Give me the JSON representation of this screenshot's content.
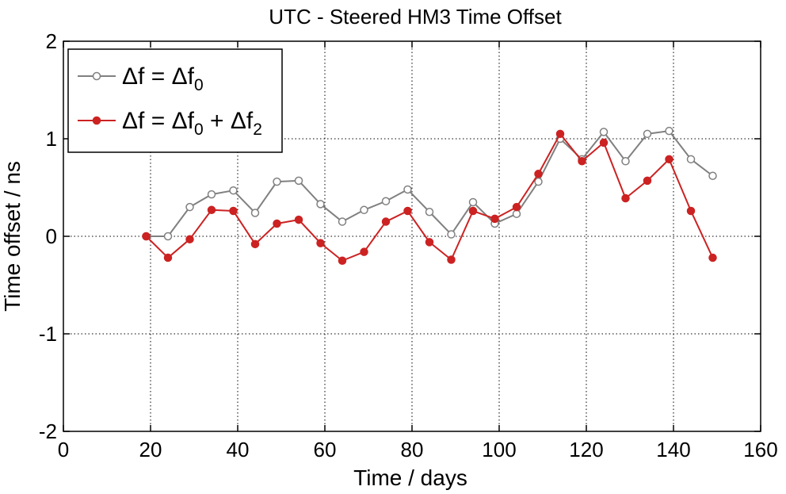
{
  "chart_data": {
    "type": "line",
    "title": "UTC - Steered HM3  Time Offset",
    "xlabel": "Time / days",
    "ylabel": "Time offset / ns",
    "xlim": [
      0,
      160
    ],
    "ylim": [
      -2,
      2
    ],
    "xticks": [
      0,
      20,
      40,
      60,
      80,
      100,
      120,
      140,
      160
    ],
    "yticks": [
      -2,
      -1,
      0,
      1,
      2
    ],
    "grid": true,
    "legend_position": "top-left",
    "x": [
      19,
      24,
      29,
      34,
      39,
      44,
      49,
      54,
      59,
      64,
      69,
      74,
      79,
      84,
      89,
      94,
      99,
      104,
      109,
      114,
      119,
      124,
      129,
      134,
      139,
      144,
      149
    ],
    "series": [
      {
        "name": "Δf = Δf0",
        "legend_parts": {
          "a": "Δf = Δf",
          "a_sub": "0"
        },
        "color": "#808080",
        "marker": "open-circle",
        "values": [
          0.0,
          0.0,
          0.3,
          0.43,
          0.47,
          0.24,
          0.56,
          0.57,
          0.33,
          0.15,
          0.27,
          0.36,
          0.48,
          0.25,
          0.02,
          0.35,
          0.13,
          0.23,
          0.56,
          1.0,
          0.79,
          1.07,
          0.77,
          1.05,
          1.08,
          0.79,
          0.62
        ]
      },
      {
        "name": "Δf = Δf0 + Δf2",
        "legend_parts": {
          "a": "Δf = Δf",
          "a_sub": "0",
          "b": " + Δf",
          "b_sub": "2"
        },
        "color": "#cc2222",
        "marker": "filled-circle",
        "values": [
          0.0,
          -0.22,
          -0.03,
          0.27,
          0.26,
          -0.08,
          0.13,
          0.17,
          -0.07,
          -0.25,
          -0.16,
          0.15,
          0.26,
          -0.06,
          -0.24,
          0.26,
          0.18,
          0.3,
          0.64,
          1.05,
          0.77,
          0.96,
          0.39,
          0.57,
          0.79,
          0.26,
          -0.22
        ]
      }
    ]
  }
}
